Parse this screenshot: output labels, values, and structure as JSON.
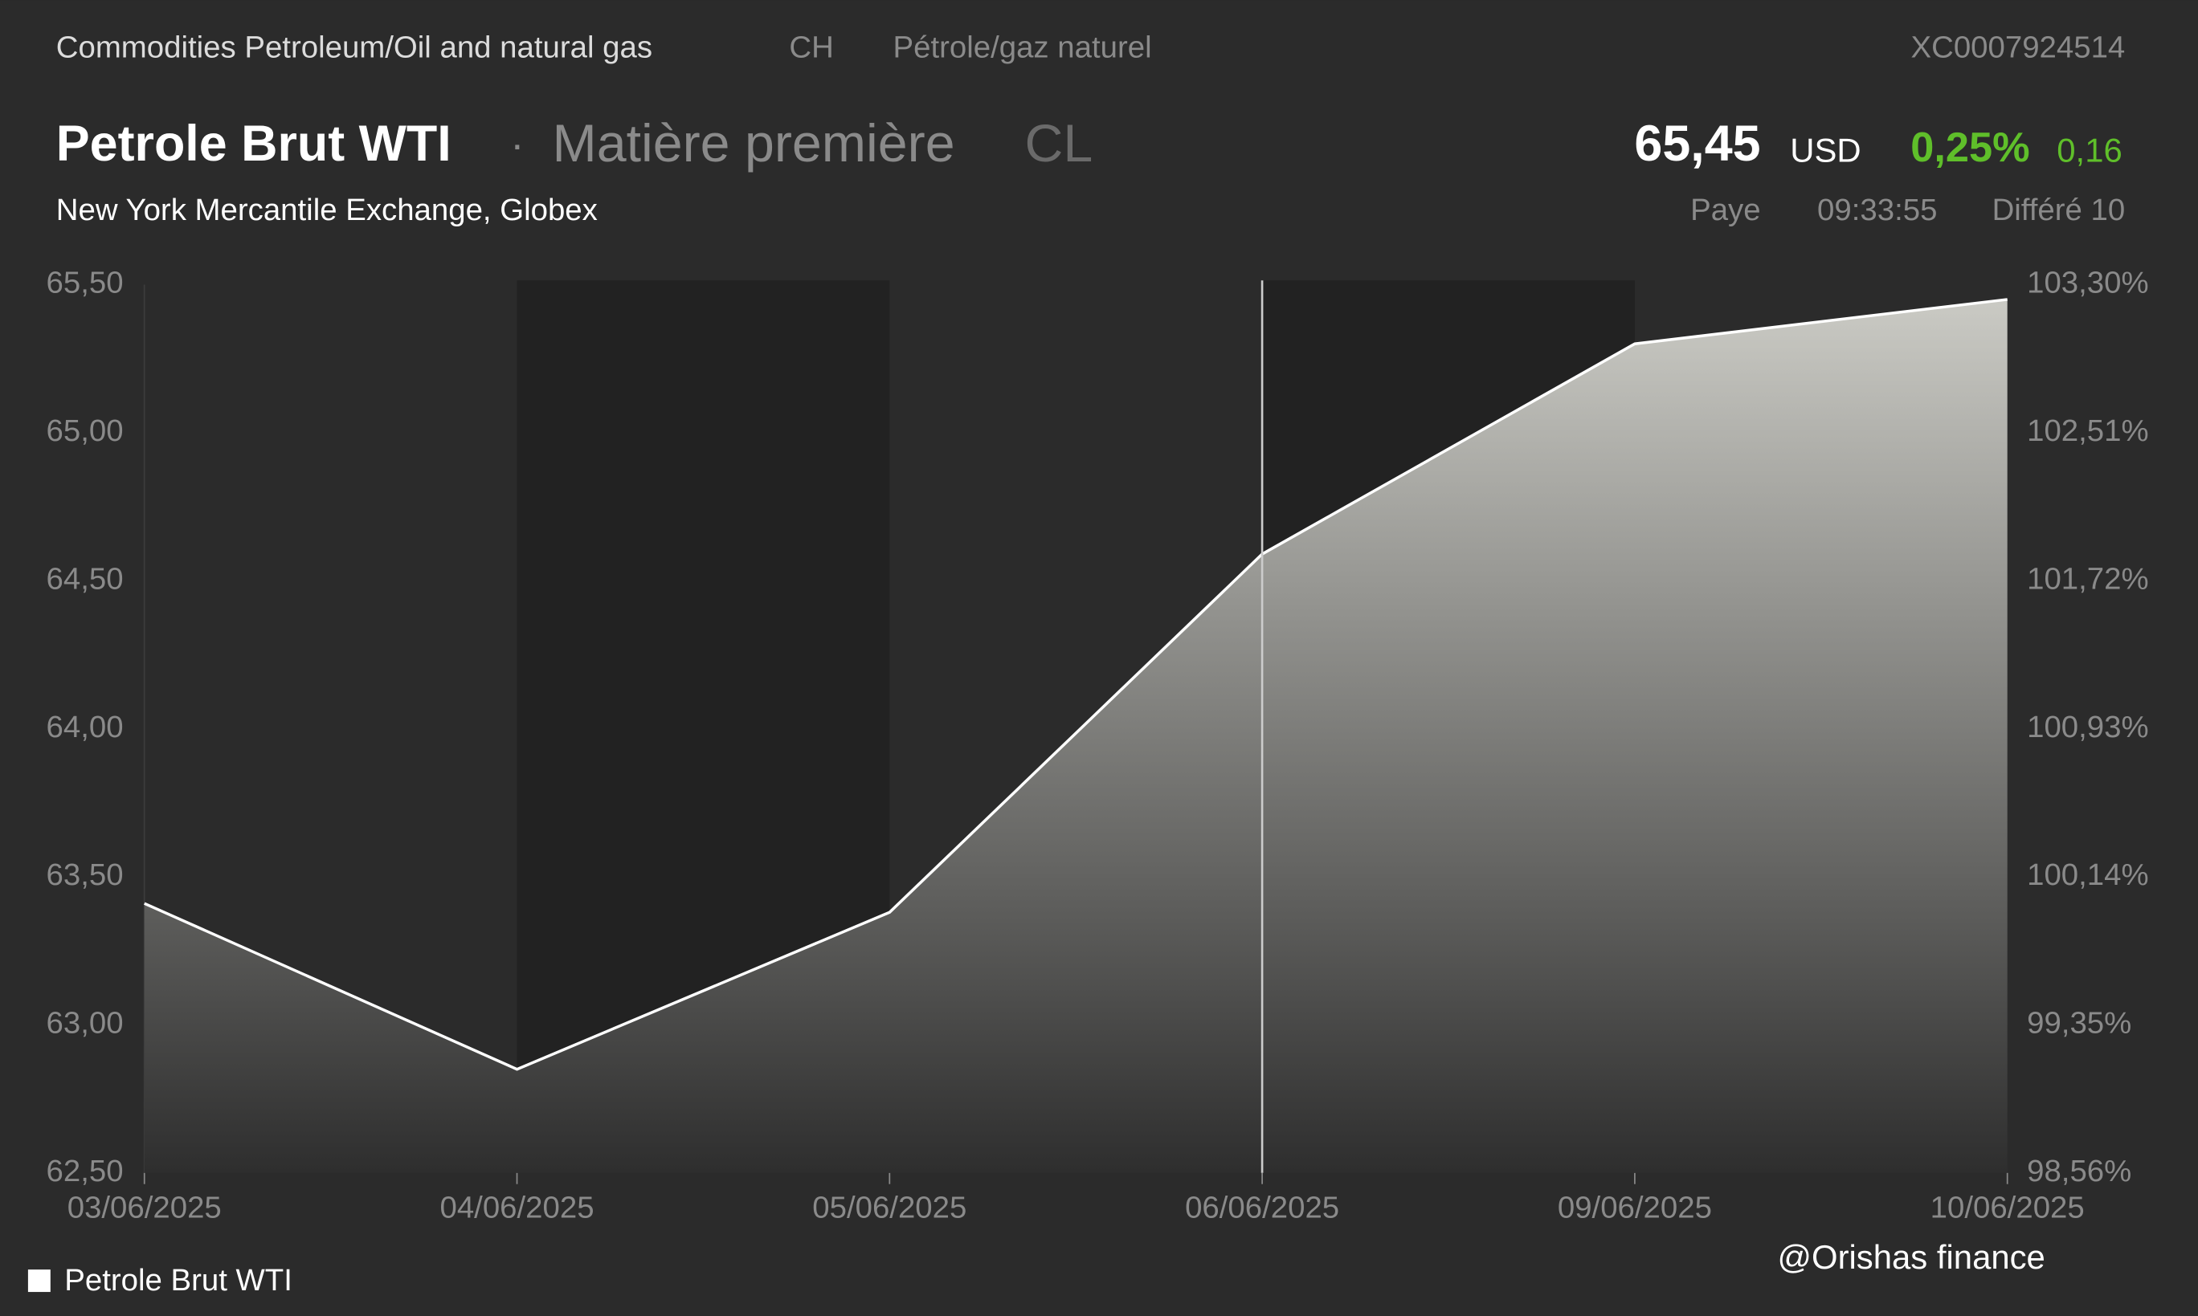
{
  "header": {
    "category": "Commodities Petroleum/Oil and natural gas",
    "country": "CH",
    "category_local": "Pétrole/gaz naturel",
    "isin": "XC0007924514",
    "name": "Petrole Brut WTI",
    "separator": "·",
    "kind": "Matière première",
    "symbol": "CL",
    "price": "65,45",
    "currency": "USD",
    "change_pct": "0,25%",
    "change": "0,16",
    "exchange": "New York Mercantile Exchange, Globex",
    "status": "Paye",
    "time": "09:33:55",
    "delay": "Différé 10"
  },
  "watermark": "@Orishas finance",
  "chart_data": {
    "type": "line",
    "categories": [
      "03/06/2025",
      "04/06/2025",
      "05/06/2025",
      "06/06/2025",
      "09/06/2025",
      "10/06/2025"
    ],
    "series": [
      {
        "name": "Petrole Brut WTI",
        "color": "#ffffff",
        "values": [
          63.41,
          62.85,
          63.38,
          64.59,
          65.3,
          65.45
        ]
      }
    ],
    "ylim": [
      62.5,
      65.5
    ],
    "yticks": [
      {
        "value": 62.5,
        "label": "62,50"
      },
      {
        "value": 63,
        "label": "63,00"
      },
      {
        "value": 63.5,
        "label": "63,50"
      },
      {
        "value": 64,
        "label": "64,00"
      },
      {
        "value": 64.5,
        "label": "64,50"
      },
      {
        "value": 65,
        "label": "65,00"
      },
      {
        "value": 65.5,
        "label": "65,50"
      }
    ],
    "y2lim": [
      98.56,
      103.3
    ],
    "y2ticks": [
      {
        "value": 98.56,
        "label": "98,56%"
      },
      {
        "value": 99.35,
        "label": "99,35%"
      },
      {
        "value": 100.14,
        "label": "100,14%"
      },
      {
        "value": 100.93,
        "label": "100,93%"
      },
      {
        "value": 101.72,
        "label": "101,72%"
      },
      {
        "value": 102.51,
        "label": "102,51%"
      },
      {
        "value": 103.3,
        "label": "103,30%"
      }
    ]
  }
}
